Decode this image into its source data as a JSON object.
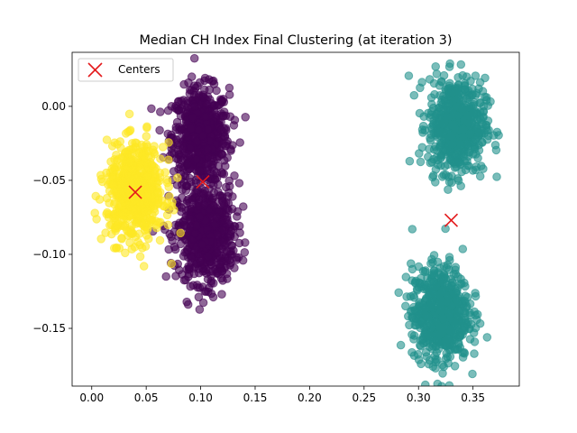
{
  "chart_data": {
    "type": "scatter",
    "title": "Median CH Index Final Clustering (at iteration 3)",
    "xlabel": "",
    "ylabel": "",
    "xlim": [
      -0.018,
      0.3925
    ],
    "ylim": [
      -0.189,
      0.0365
    ],
    "x_ticks": [
      0.0,
      0.05,
      0.1,
      0.15,
      0.2,
      0.25,
      0.3,
      0.35
    ],
    "x_tick_labels": [
      "0.00",
      "0.05",
      "0.10",
      "0.15",
      "0.20",
      "0.25",
      "0.30",
      "0.35"
    ],
    "y_ticks": [
      0.0,
      -0.05,
      -0.1,
      -0.15
    ],
    "y_tick_labels": [
      "0.00",
      "−0.05",
      "−0.10",
      "−0.15"
    ],
    "grid": false,
    "legend": {
      "position": "top-left",
      "entries": [
        {
          "label": "Centers",
          "marker": "x",
          "color": "#e41a1c"
        }
      ]
    },
    "clusters": [
      {
        "label": 0,
        "color": "#440154",
        "blobs": [
          {
            "center": [
              0.1,
              -0.02
            ],
            "sx": 0.013,
            "sy": 0.016
          },
          {
            "center": [
              0.105,
              -0.087
            ],
            "sx": 0.013,
            "sy": 0.016
          }
        ]
      },
      {
        "label": 1,
        "color": "#21918c",
        "blobs": [
          {
            "center": [
              0.335,
              -0.013
            ],
            "sx": 0.013,
            "sy": 0.016
          },
          {
            "center": [
              0.32,
              -0.14
            ],
            "sx": 0.013,
            "sy": 0.016
          }
        ]
      },
      {
        "label": 2,
        "color": "#fde725",
        "blobs": [
          {
            "center": [
              0.04,
              -0.058
            ],
            "sx": 0.013,
            "sy": 0.016
          }
        ]
      }
    ],
    "centers": [
      {
        "x": 0.04,
        "y": -0.058
      },
      {
        "x": 0.102,
        "y": -0.051
      },
      {
        "x": 0.33,
        "y": -0.077
      }
    ]
  }
}
